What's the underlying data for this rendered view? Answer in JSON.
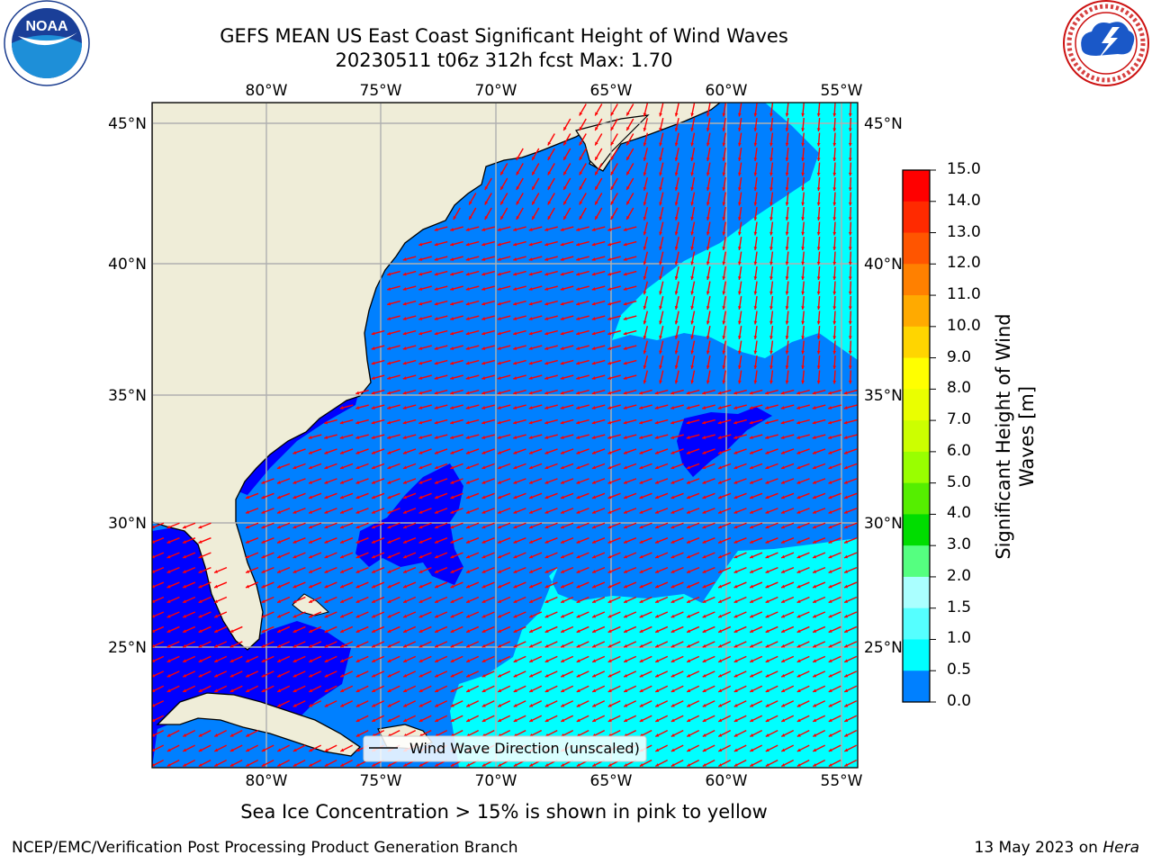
{
  "title": {
    "line1": "GEFS MEAN US East Coast Significant Height of Wind Waves",
    "line2": "20230511 t06z 312h fcst   Max: 1.70"
  },
  "map": {
    "lon_labels": [
      "80°W",
      "75°W",
      "70°W",
      "65°W",
      "60°W",
      "55°W"
    ],
    "lat_labels": [
      "45°N",
      "40°N",
      "35°N",
      "30°N",
      "25°N"
    ],
    "legend_label": "Wind Wave Direction (unscaled)",
    "colors": {
      "land": "#efedd8",
      "ocean_dark": "#0000ff",
      "ocean_mid": "#0080ff",
      "ocean_light": "#00ffff",
      "arrows": "#ff0000",
      "grid": "#b0b0b0"
    }
  },
  "colorbar": {
    "title": "Significant Height of Wind Waves [m]",
    "tick_labels": [
      "15.0",
      "14.0",
      "13.0",
      "12.0",
      "11.0",
      "10.0",
      "9.0",
      "8.0",
      "7.0",
      "6.0",
      "5.0",
      "4.0",
      "3.0",
      "2.0",
      "1.5",
      "1.0",
      "0.5",
      "0.0"
    ],
    "colors": [
      "#ff0000",
      "#ff2a00",
      "#ff5500",
      "#ff8000",
      "#ffaa00",
      "#ffd500",
      "#ffff00",
      "#eaff00",
      "#ccff00",
      "#99ff00",
      "#55ee00",
      "#00dd00",
      "#55ff80",
      "#aaffff",
      "#55ffff",
      "#00ffff",
      "#0080ff",
      "#0000ff"
    ]
  },
  "sea_ice_note": "Sea Ice Concentration > 15% is shown in pink to yellow",
  "footer": {
    "left": "NCEP/EMC/Verification Post Processing Product Generation Branch",
    "right_date": "13 May 2023 on ",
    "right_machine": "Hera"
  },
  "logos": {
    "noaa": "NOAA",
    "nws": "NATIONAL WEATHER SERVICE"
  }
}
